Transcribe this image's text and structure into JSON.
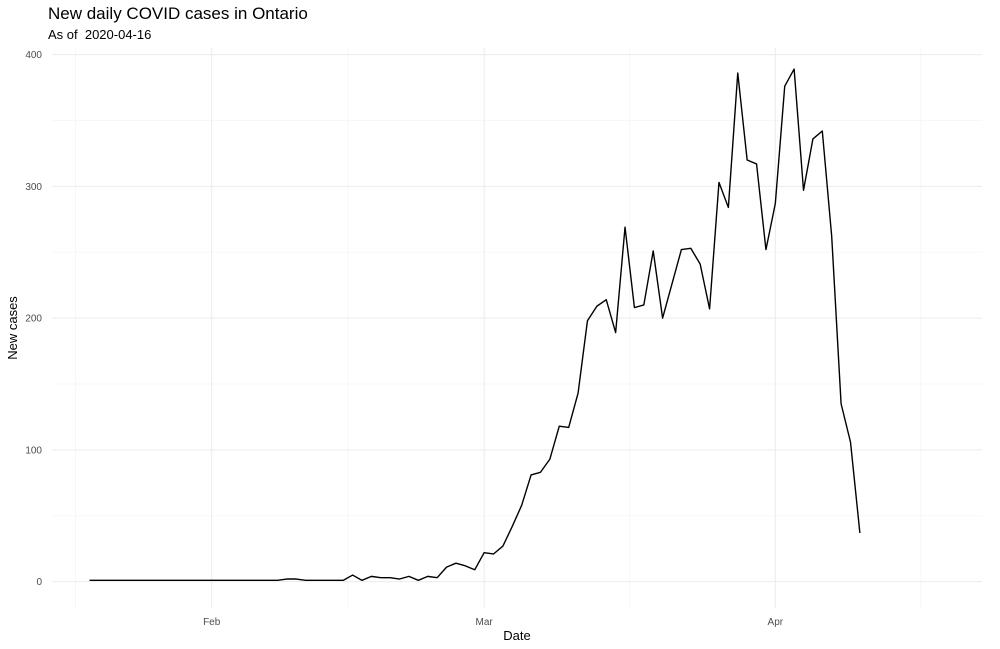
{
  "chart_data": {
    "type": "line",
    "title": "New daily COVID cases in Ontario",
    "subtitle": "As of  2020-04-16",
    "xlabel": "Date",
    "ylabel": "New cases",
    "xlim": [
      "2020-01-15",
      "2020-04-23"
    ],
    "ylim": [
      -20,
      405
    ],
    "y_ticks": [
      0,
      100,
      200,
      300,
      400
    ],
    "x_ticks": [
      {
        "date": "2020-02-01",
        "label": "Feb"
      },
      {
        "date": "2020-03-01",
        "label": "Mar"
      },
      {
        "date": "2020-04-01",
        "label": "Apr"
      }
    ],
    "grid": true,
    "line_color": "#000000",
    "series": [
      {
        "start_date": "2020-01-19",
        "values": [
          1,
          1,
          1,
          1,
          1,
          1,
          1,
          1,
          1,
          1,
          1,
          1,
          1,
          1,
          1,
          1,
          1,
          1,
          1,
          1,
          1,
          2,
          2,
          1,
          1,
          1,
          1,
          1,
          5,
          1,
          4,
          3,
          3,
          2,
          4,
          1,
          4,
          3,
          11,
          14,
          12,
          9,
          22,
          21,
          27,
          42,
          58,
          81,
          83,
          93,
          118,
          117,
          143,
          198,
          209,
          214,
          189,
          269,
          208,
          210,
          251,
          200,
          226,
          252,
          253,
          241,
          207,
          303,
          284,
          386,
          320,
          317,
          252,
          287,
          376,
          389,
          297,
          336,
          342,
          262,
          135,
          106,
          37
        ]
      }
    ]
  }
}
